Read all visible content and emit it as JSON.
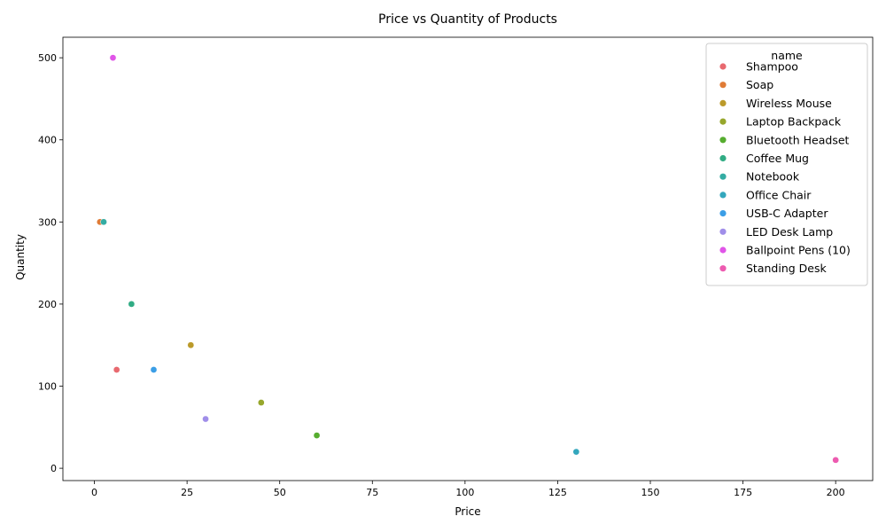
{
  "chart_data": {
    "type": "scatter",
    "title": "Price vs Quantity of Products",
    "xlabel": "Price",
    "ylabel": "Quantity",
    "xlim": [
      -8.5,
      210
    ],
    "ylim": [
      -15,
      525
    ],
    "xticks": [
      0,
      25,
      50,
      75,
      100,
      125,
      150,
      175,
      200
    ],
    "yticks": [
      0,
      100,
      200,
      300,
      400,
      500
    ],
    "grid": false,
    "legend": {
      "title": "name",
      "placement": "top-right"
    },
    "series": [
      {
        "name": "Shampoo",
        "color": "#e8696f",
        "points": [
          {
            "x": 6,
            "y": 120
          }
        ]
      },
      {
        "name": "Soap",
        "color": "#e07b36",
        "points": [
          {
            "x": 1.5,
            "y": 300
          }
        ]
      },
      {
        "name": "Wireless Mouse",
        "color": "#bb9a2a",
        "points": [
          {
            "x": 26,
            "y": 150
          }
        ]
      },
      {
        "name": "Laptop Backpack",
        "color": "#97a72c",
        "points": [
          {
            "x": 45,
            "y": 80
          }
        ]
      },
      {
        "name": "Bluetooth Headset",
        "color": "#56ad2f",
        "points": [
          {
            "x": 60,
            "y": 40
          }
        ]
      },
      {
        "name": "Coffee Mug",
        "color": "#31ac84",
        "points": [
          {
            "x": 10,
            "y": 200
          }
        ]
      },
      {
        "name": "Notebook",
        "color": "#34aca3",
        "points": [
          {
            "x": 2.5,
            "y": 300
          }
        ]
      },
      {
        "name": "Office Chair",
        "color": "#33a7bd",
        "points": [
          {
            "x": 130,
            "y": 20
          }
        ]
      },
      {
        "name": "USB-C Adapter",
        "color": "#3b9ee6",
        "points": [
          {
            "x": 16,
            "y": 120
          }
        ]
      },
      {
        "name": "LED Desk Lamp",
        "color": "#a08ee9",
        "points": [
          {
            "x": 30,
            "y": 60
          }
        ]
      },
      {
        "name": "Ballpoint Pens (10)",
        "color": "#e055e8",
        "points": [
          {
            "x": 5,
            "y": 500
          }
        ]
      },
      {
        "name": "Standing Desk",
        "color": "#ed5bb0",
        "points": [
          {
            "x": 200,
            "y": 10
          }
        ]
      }
    ]
  }
}
